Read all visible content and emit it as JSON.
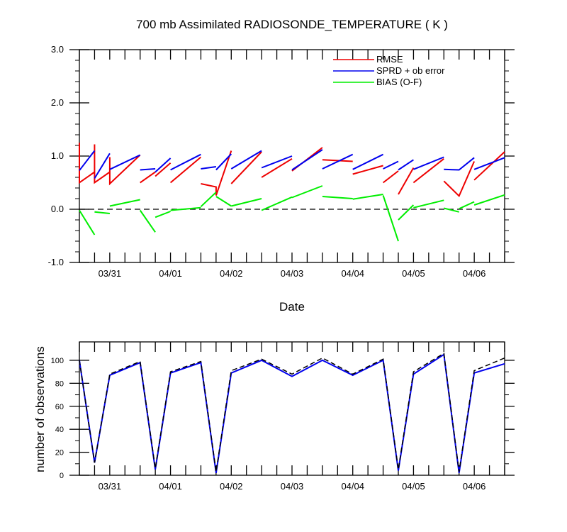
{
  "title": "700 mb Assimilated RADIOSONDE_TEMPERATURE ( K )",
  "colors": {
    "rmse": "#ee0000",
    "sprd": "#0000ee",
    "bias": "#00ee00",
    "axis": "#000000"
  },
  "chart_data": [
    {
      "type": "line",
      "title": "700 mb Assimilated RADIOSONDE_TEMPERATURE ( K )",
      "xlabel": "Date",
      "ylabel": "",
      "xlim": [
        0,
        7
      ],
      "ylim": [
        -1.0,
        3.0
      ],
      "yticks": [
        -1.0,
        0.0,
        1.0,
        2.0,
        3.0
      ],
      "ytick_labels": [
        "-1.0",
        "0.0",
        "1.0",
        "2.0",
        "3.0"
      ],
      "xtick_labels": [
        "03/31",
        "04/01",
        "04/02",
        "04/03",
        "04/04",
        "04/05",
        "04/06"
      ],
      "legend_position": "top-right",
      "reference_line": 0.0,
      "series": [
        {
          "name": "RMSE",
          "color": "#ee0000",
          "segments": [
            [
              [
                0,
                1.25
              ],
              [
                0,
                0.5
              ],
              [
                0.25,
                0.7
              ]
            ],
            [
              [
                0.25,
                1.22
              ],
              [
                0.25,
                0.5
              ],
              [
                0.5,
                0.7
              ]
            ],
            [
              [
                0.5,
                0.98
              ],
              [
                0.5,
                0.48
              ],
              [
                1.0,
                1.02
              ]
            ],
            [
              [
                1.0,
                0.5
              ],
              [
                1.25,
                0.7
              ]
            ],
            [
              [
                1.25,
                0.62
              ],
              [
                1.5,
                0.87
              ]
            ],
            [
              [
                1.5,
                0.5
              ],
              [
                2.0,
                0.98
              ]
            ],
            [
              [
                2.0,
                0.48
              ],
              [
                2.25,
                0.42
              ],
              [
                2.25,
                0.26
              ],
              [
                2.5,
                1.1
              ]
            ],
            [
              [
                2.5,
                0.48
              ],
              [
                3.0,
                1.08
              ]
            ],
            [
              [
                3.0,
                0.6
              ],
              [
                3.5,
                0.95
              ]
            ],
            [
              [
                3.5,
                0.72
              ],
              [
                4.0,
                1.16
              ]
            ],
            [
              [
                4.0,
                0.93
              ],
              [
                4.5,
                0.9
              ]
            ],
            [
              [
                4.5,
                0.66
              ],
              [
                5.0,
                0.82
              ]
            ],
            [
              [
                5.0,
                0.5
              ],
              [
                5.25,
                0.72
              ]
            ],
            [
              [
                5.25,
                0.28
              ],
              [
                5.5,
                0.78
              ]
            ],
            [
              [
                5.5,
                0.5
              ],
              [
                6.0,
                0.95
              ]
            ],
            [
              [
                6.0,
                0.53
              ],
              [
                6.25,
                0.25
              ],
              [
                6.5,
                0.9
              ]
            ],
            [
              [
                6.5,
                0.55
              ],
              [
                7.0,
                1.08
              ]
            ]
          ]
        },
        {
          "name": "SPRD + ob error",
          "color": "#0000ee",
          "segments": [
            [
              [
                0,
                0.73
              ],
              [
                0.25,
                1.1
              ]
            ],
            [
              [
                0.25,
                0.58
              ],
              [
                0.5,
                1.05
              ]
            ],
            [
              [
                0.5,
                0.75
              ],
              [
                1.0,
                1.02
              ]
            ],
            [
              [
                1.0,
                0.74
              ],
              [
                1.25,
                0.76
              ]
            ],
            [
              [
                1.25,
                0.7
              ],
              [
                1.5,
                0.96
              ]
            ],
            [
              [
                1.5,
                0.74
              ],
              [
                2.0,
                1.03
              ]
            ],
            [
              [
                2.0,
                0.76
              ],
              [
                2.25,
                0.8
              ]
            ],
            [
              [
                2.25,
                0.74
              ],
              [
                2.5,
                1.04
              ]
            ],
            [
              [
                2.5,
                0.76
              ],
              [
                3.0,
                1.1
              ]
            ],
            [
              [
                3.0,
                0.78
              ],
              [
                3.5,
                1.0
              ]
            ],
            [
              [
                3.5,
                0.74
              ],
              [
                4.0,
                1.12
              ]
            ],
            [
              [
                4.0,
                0.76
              ],
              [
                4.5,
                1.03
              ]
            ],
            [
              [
                4.5,
                0.75
              ],
              [
                5.0,
                1.03
              ]
            ],
            [
              [
                5.0,
                0.76
              ],
              [
                5.25,
                0.9
              ]
            ],
            [
              [
                5.25,
                0.74
              ],
              [
                5.5,
                0.93
              ]
            ],
            [
              [
                5.5,
                0.75
              ],
              [
                6.0,
                0.98
              ]
            ],
            [
              [
                6.0,
                0.75
              ],
              [
                6.25,
                0.74
              ],
              [
                6.5,
                0.97
              ]
            ],
            [
              [
                6.5,
                0.75
              ],
              [
                7.0,
                0.97
              ]
            ]
          ]
        },
        {
          "name": "BIAS (O-F)",
          "color": "#00ee00",
          "segments": [
            [
              [
                0,
                -0.02
              ],
              [
                0.25,
                -0.48
              ]
            ],
            [
              [
                0.25,
                -0.05
              ],
              [
                0.5,
                -0.08
              ]
            ],
            [
              [
                0.5,
                0.06
              ],
              [
                1.0,
                0.18
              ]
            ],
            [
              [
                1.0,
                -0.02
              ],
              [
                1.25,
                -0.43
              ]
            ],
            [
              [
                1.25,
                -0.15
              ],
              [
                1.5,
                -0.04
              ]
            ],
            [
              [
                1.5,
                -0.02
              ],
              [
                2.0,
                0.03
              ]
            ],
            [
              [
                2.0,
                0.05
              ],
              [
                2.25,
                0.32
              ]
            ],
            [
              [
                2.25,
                0.24
              ],
              [
                2.5,
                0.06
              ]
            ],
            [
              [
                2.5,
                0.06
              ],
              [
                3.0,
                0.2
              ]
            ],
            [
              [
                3.0,
                -0.02
              ],
              [
                3.5,
                0.23
              ]
            ],
            [
              [
                3.5,
                0.22
              ],
              [
                4.0,
                0.44
              ]
            ],
            [
              [
                4.0,
                0.24
              ],
              [
                4.5,
                0.2
              ]
            ],
            [
              [
                4.5,
                0.19
              ],
              [
                5.0,
                0.28
              ]
            ],
            [
              [
                5.0,
                0.26
              ],
              [
                5.25,
                -0.6
              ]
            ],
            [
              [
                5.25,
                -0.2
              ],
              [
                5.5,
                0.08
              ]
            ],
            [
              [
                5.5,
                0.03
              ],
              [
                6.0,
                0.17
              ]
            ],
            [
              [
                6.0,
                0.02
              ],
              [
                6.25,
                -0.05
              ]
            ],
            [
              [
                6.25,
                0.01
              ],
              [
                6.5,
                0.14
              ]
            ],
            [
              [
                6.5,
                0.08
              ],
              [
                7.0,
                0.27
              ]
            ]
          ]
        }
      ]
    },
    {
      "type": "line",
      "title": "",
      "xlabel": "",
      "ylabel": "number of observations",
      "xlim": [
        0,
        7
      ],
      "ylim": [
        0,
        116
      ],
      "yticks": [
        0,
        20,
        40,
        60,
        80,
        100
      ],
      "ytick_labels": [
        "0",
        "20",
        "40",
        "60",
        "80",
        "100"
      ],
      "xtick_labels": [
        "03/31",
        "04/01",
        "04/02",
        "04/03",
        "04/04",
        "04/05",
        "04/06"
      ],
      "series": [
        {
          "name": "",
          "color": "#000000",
          "dashed": true,
          "x": [
            0,
            0.25,
            0.5,
            1.0,
            1.25,
            1.5,
            2.0,
            2.25,
            2.5,
            3.0,
            3.5,
            4.0,
            4.5,
            5.0,
            5.25,
            5.5,
            6.0,
            6.25,
            6.5,
            7.0
          ],
          "y": [
            100,
            11,
            88,
            99,
            6,
            90,
            99,
            3,
            91,
            101,
            88,
            102,
            88,
            101,
            5,
            90,
            106,
            3,
            91,
            102
          ]
        },
        {
          "name": "",
          "color": "#0000ee",
          "dashed": false,
          "x": [
            0,
            0.25,
            0.5,
            1.0,
            1.25,
            1.5,
            2.0,
            2.25,
            2.5,
            3.0,
            3.5,
            4.0,
            4.5,
            5.0,
            5.25,
            5.5,
            6.0,
            6.25,
            6.5,
            7.0
          ],
          "y": [
            100,
            11,
            87,
            98,
            5,
            89,
            98,
            2,
            89,
            100,
            86,
            100,
            87,
            100,
            4,
            88,
            105,
            2,
            89,
            97
          ]
        }
      ]
    }
  ]
}
